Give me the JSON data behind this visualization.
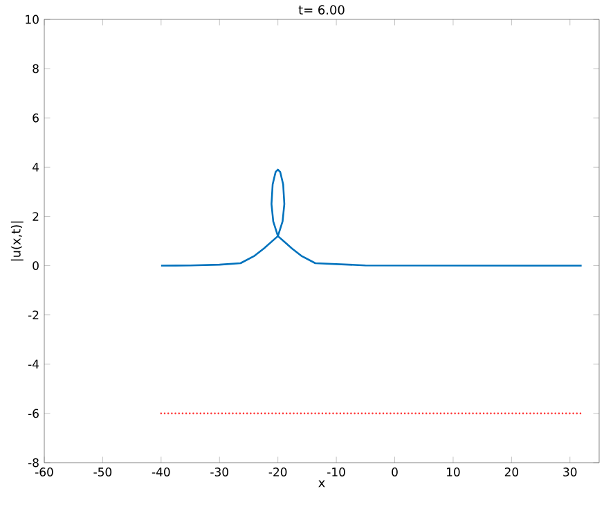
{
  "chart_data": {
    "type": "line",
    "title": "t= 6.00",
    "xlabel": "x",
    "ylabel": "|u(x,t)|",
    "xlim": [
      -60,
      35
    ],
    "xticks": [
      -60,
      -50,
      -40,
      -30,
      -20,
      -10,
      0,
      10,
      20,
      30
    ],
    "ylim": [
      -8,
      10
    ],
    "yticks": [
      -8,
      -6,
      -4,
      -2,
      0,
      2,
      4,
      6,
      8,
      10
    ],
    "series": [
      {
        "color": "#0072bd",
        "line_style": "solid",
        "x": [
          -40,
          -35,
          -30,
          -26.4,
          -24,
          -22.4,
          -21.2,
          -20,
          -19.2,
          -18.9,
          -19.1,
          -19.6,
          -20,
          -20.4,
          -20.9,
          -21.1,
          -20.8,
          -20,
          -18.8,
          -17.6,
          -16,
          -13.6,
          -5,
          32
        ],
        "values": [
          0,
          0.01,
          0.04,
          0.1,
          0.4,
          0.7,
          0.95,
          1.2,
          1.8,
          2.5,
          3.3,
          3.8,
          3.9,
          3.8,
          3.3,
          2.5,
          1.8,
          1.2,
          0.95,
          0.7,
          0.4,
          0.1,
          0.01,
          0
        ]
      },
      {
        "color": "#ff3b3b",
        "line_style": "dotted",
        "x": [
          -40,
          -21.4,
          -18.8,
          32
        ],
        "values": [
          -6,
          -6,
          -6,
          -6
        ]
      }
    ]
  }
}
